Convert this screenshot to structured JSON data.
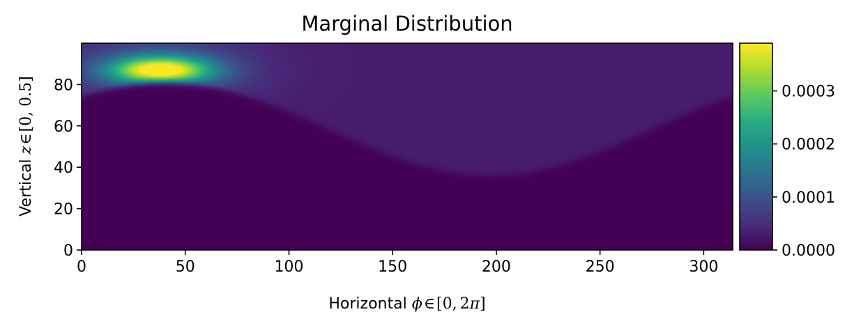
{
  "chart_data": {
    "type": "heatmap",
    "title": "Marginal Distribution",
    "xlabel": "Horizontal ϕ ∈ [0, 2π]",
    "ylabel": "Vertical z ∈ [0, 0.5]",
    "xlabel_parts": {
      "text": "Horizontal",
      "sym": "ϕ",
      "in": "∈",
      "open": "[0,",
      "num": "2",
      "pi": "π",
      "close": "]"
    },
    "ylabel_parts": {
      "text": "Vertical",
      "sym": "z",
      "in": "∈",
      "range": "[0, 0.5]"
    },
    "xlim": [
      0,
      314
    ],
    "ylim": [
      0,
      100
    ],
    "x_ticks": [
      0,
      50,
      100,
      150,
      200,
      250,
      300
    ],
    "x_tick_labels": [
      "0",
      "50",
      "100",
      "150",
      "200",
      "250",
      "300"
    ],
    "y_ticks": [
      0,
      20,
      40,
      60,
      80
    ],
    "y_tick_labels": [
      "0",
      "20",
      "40",
      "60",
      "80"
    ],
    "colormap": "viridis",
    "colorbar": {
      "range": [
        0,
        0.00039
      ],
      "ticks": [
        0,
        0.0001,
        0.0002,
        0.0003
      ],
      "tick_labels": [
        "0.0000",
        "0.0001",
        "0.0002",
        "0.0003"
      ]
    },
    "features": {
      "boundary": "sinusoidal curve, ~81 at x≈40 and ~36 at x≈196",
      "peak": {
        "x": 38,
        "y": 87,
        "value": 0.00039
      },
      "background_above_boundary": 3e-05,
      "below_boundary_value": 0
    },
    "grid": false
  }
}
